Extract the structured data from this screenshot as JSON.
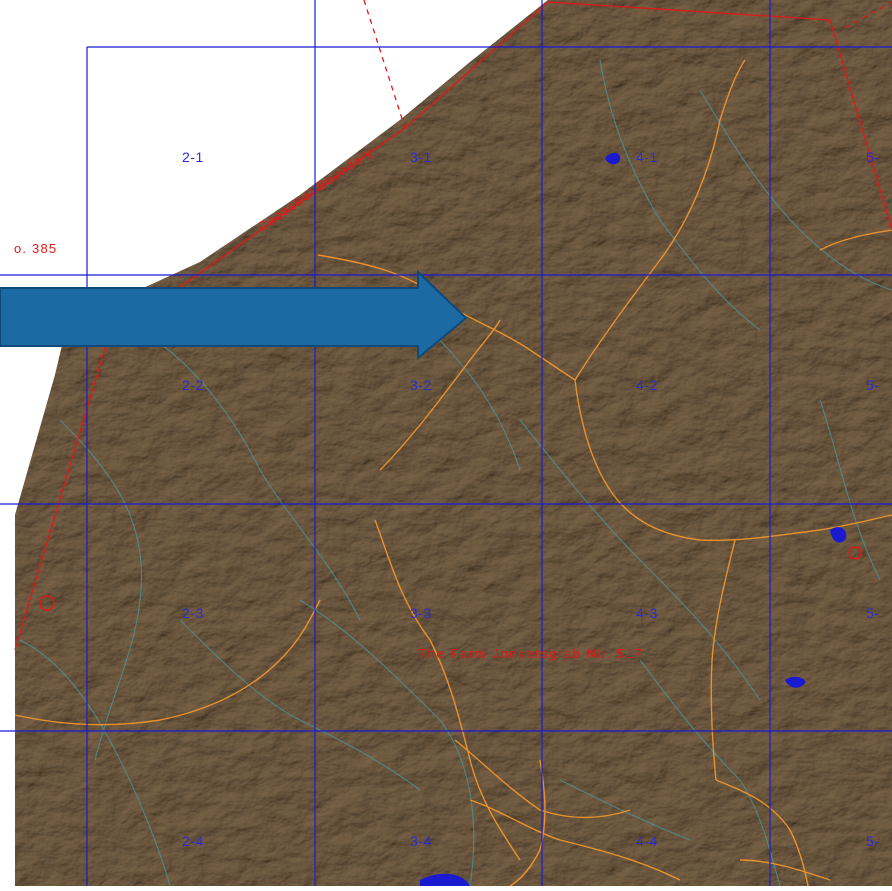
{
  "map": {
    "colors": {
      "terrain": "#9c8b78",
      "grid": "#1b1bd4",
      "boundary": "#e01818",
      "orange_features": "#e8922e",
      "drainage": "#4f8f8f",
      "water": "#1a1ad0",
      "arrow": "#1b6aa3",
      "arrow_edge": "#0d4a7a"
    },
    "grid_cells": [
      "2-1",
      "3-1",
      "4-1",
      "5-",
      "2-2",
      "3-2",
      "4-2",
      "5-",
      "2-3",
      "3-3",
      "4-3",
      "5-",
      "2-4",
      "3-4",
      "4-4",
      "5-"
    ],
    "labels": {
      "cadastral": "Cadastral Boundary",
      "partial_no": "o. 385",
      "farm": "The Farm Jonkersgrab No. 517"
    },
    "icons": {
      "arrow": "right-arrow-icon"
    }
  }
}
